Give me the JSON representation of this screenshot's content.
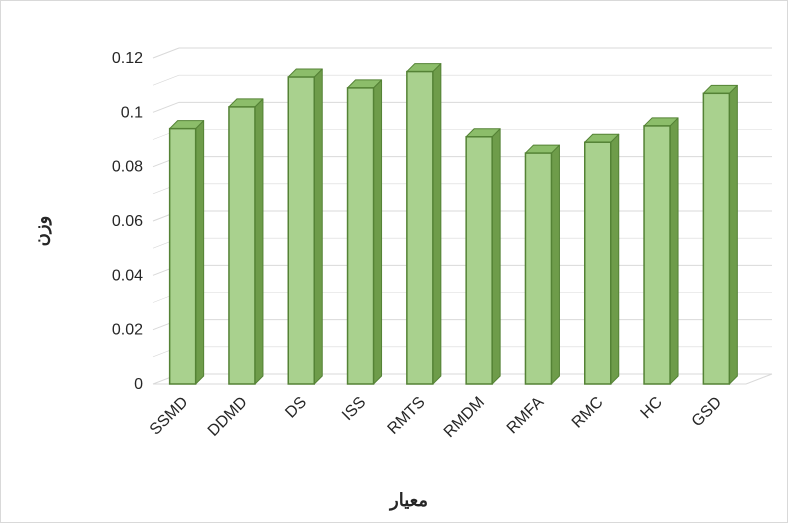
{
  "chart_data": {
    "type": "bar",
    "style": "3d-column",
    "categories": [
      "SSMD",
      "DDMD",
      "DS",
      "ISS",
      "RMTS",
      "RMDM",
      "RMFA",
      "RMC",
      "HC",
      "GSD"
    ],
    "values": [
      0.094,
      0.102,
      0.113,
      0.109,
      0.115,
      0.091,
      0.085,
      0.089,
      0.095,
      0.107
    ],
    "xlabel": "معیار",
    "ylabel": "وزن",
    "ylim": [
      0,
      0.12
    ],
    "yticks": [
      "0",
      "0.02",
      "0.04",
      "0.06",
      "0.08",
      "0.1",
      "0.12"
    ],
    "grid": true,
    "legend": "none",
    "colors": {
      "bar_front": "#a9d18e",
      "bar_side": "#6e9c4a",
      "bar_top": "#8cbd6a",
      "bar_edge": "#548235",
      "grid": "#d9d9d9"
    }
  }
}
